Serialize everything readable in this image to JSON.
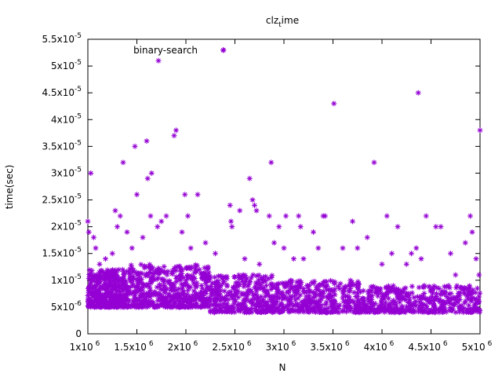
{
  "chart_data": {
    "type": "scatter",
    "title": "clz",
    "title_sub": "t",
    "title_end": "ime",
    "xlabel": "N",
    "ylabel": "time(sec)",
    "xlim": [
      1000000,
      5000000
    ],
    "ylim": [
      0,
      5.5e-05
    ],
    "grid": false,
    "legend_position": "top-left",
    "marker": "asterisk",
    "color": "#9400d3",
    "x_ticks": [
      {
        "value": 1000000,
        "mantissa": "1x10",
        "exp": "6"
      },
      {
        "value": 1500000,
        "mantissa": "1.5x10",
        "exp": "6"
      },
      {
        "value": 2000000,
        "mantissa": "2x10",
        "exp": "6"
      },
      {
        "value": 2500000,
        "mantissa": "2.5x10",
        "exp": "6"
      },
      {
        "value": 3000000,
        "mantissa": "3x10",
        "exp": "6"
      },
      {
        "value": 3500000,
        "mantissa": "3.5x10",
        "exp": "6"
      },
      {
        "value": 4000000,
        "mantissa": "4x10",
        "exp": "6"
      },
      {
        "value": 4500000,
        "mantissa": "4.5x10",
        "exp": "6"
      },
      {
        "value": 5000000,
        "mantissa": "5x10",
        "exp": "6"
      }
    ],
    "y_ticks": [
      {
        "value": 0,
        "mantissa": "0",
        "exp": ""
      },
      {
        "value": 5e-06,
        "mantissa": "5x10",
        "exp": "-6"
      },
      {
        "value": 1e-05,
        "mantissa": "1x10",
        "exp": "-5"
      },
      {
        "value": 1.5e-05,
        "mantissa": "1.5x10",
        "exp": "-5"
      },
      {
        "value": 2e-05,
        "mantissa": "2x10",
        "exp": "-5"
      },
      {
        "value": 2.5e-05,
        "mantissa": "2.5x10",
        "exp": "-5"
      },
      {
        "value": 3e-05,
        "mantissa": "3x10",
        "exp": "-5"
      },
      {
        "value": 3.5e-05,
        "mantissa": "3.5x10",
        "exp": "-5"
      },
      {
        "value": 4e-05,
        "mantissa": "4x10",
        "exp": "-5"
      },
      {
        "value": 4.5e-05,
        "mantissa": "4.5x10",
        "exp": "-5"
      },
      {
        "value": 5e-05,
        "mantissa": "5x10",
        "exp": "-5"
      },
      {
        "value": 5.5e-05,
        "mantissa": "5.5x10",
        "exp": "-5"
      }
    ],
    "series": [
      {
        "name": "binary-search",
        "points": [
          [
            1000000,
            2.1e-05
          ],
          [
            1010000,
            1.9e-05
          ],
          [
            1030000,
            3e-05
          ],
          [
            1060000,
            1.8e-05
          ],
          [
            1080000,
            1.6e-05
          ],
          [
            1120000,
            1.3e-05
          ],
          [
            1180000,
            1.4e-05
          ],
          [
            1250000,
            1.5e-05
          ],
          [
            1280000,
            2.3e-05
          ],
          [
            1300000,
            2e-05
          ],
          [
            1330000,
            2.2e-05
          ],
          [
            1360000,
            3.2e-05
          ],
          [
            1400000,
            1.9e-05
          ],
          [
            1450000,
            1.6e-05
          ],
          [
            1480000,
            3.5e-05
          ],
          [
            1500000,
            2.6e-05
          ],
          [
            1560000,
            1.8e-05
          ],
          [
            1600000,
            3.6e-05
          ],
          [
            1610000,
            2.9e-05
          ],
          [
            1650000,
            3e-05
          ],
          [
            1640000,
            2.2e-05
          ],
          [
            1720000,
            5.1e-05
          ],
          [
            1710000,
            2e-05
          ],
          [
            1750000,
            2.1e-05
          ],
          [
            1800000,
            2.2e-05
          ],
          [
            1880000,
            3.7e-05
          ],
          [
            1900000,
            3.8e-05
          ],
          [
            1960000,
            1.9e-05
          ],
          [
            1990000,
            2.6e-05
          ],
          [
            2020000,
            2.2e-05
          ],
          [
            2050000,
            1.6e-05
          ],
          [
            2120000,
            2.6e-05
          ],
          [
            2200000,
            1.7e-05
          ],
          [
            2300000,
            1.5e-05
          ],
          [
            2380000,
            5.3e-05
          ],
          [
            2450000,
            2.4e-05
          ],
          [
            2460000,
            2.1e-05
          ],
          [
            2470000,
            2e-05
          ],
          [
            2550000,
            2.3e-05
          ],
          [
            2600000,
            1.4e-05
          ],
          [
            2650000,
            2.9e-05
          ],
          [
            2680000,
            2.5e-05
          ],
          [
            2700000,
            2.4e-05
          ],
          [
            2720000,
            2.3e-05
          ],
          [
            2750000,
            1.3e-05
          ],
          [
            2850000,
            2.2e-05
          ],
          [
            2870000,
            3.2e-05
          ],
          [
            2900000,
            1.7e-05
          ],
          [
            2950000,
            2e-05
          ],
          [
            3000000,
            1.6e-05
          ],
          [
            3020000,
            2.2e-05
          ],
          [
            3100000,
            1.4e-05
          ],
          [
            3150000,
            2.2e-05
          ],
          [
            3170000,
            2e-05
          ],
          [
            3200000,
            1.4e-05
          ],
          [
            3300000,
            1.9e-05
          ],
          [
            3350000,
            1.6e-05
          ],
          [
            3400000,
            2.2e-05
          ],
          [
            3420000,
            2.2e-05
          ],
          [
            3510000,
            4.3e-05
          ],
          [
            3600000,
            1.6e-05
          ],
          [
            3700000,
            2.1e-05
          ],
          [
            3750000,
            1.6e-05
          ],
          [
            3850000,
            1.8e-05
          ],
          [
            3920000,
            3.2e-05
          ],
          [
            4000000,
            1.3e-05
          ],
          [
            4050000,
            2.2e-05
          ],
          [
            4100000,
            1.5e-05
          ],
          [
            4160000,
            2e-05
          ],
          [
            4250000,
            1.3e-05
          ],
          [
            4300000,
            1.5e-05
          ],
          [
            4350000,
            1.6e-05
          ],
          [
            4370000,
            4.5e-05
          ],
          [
            4400000,
            1.4e-05
          ],
          [
            4450000,
            2.2e-05
          ],
          [
            4550000,
            2e-05
          ],
          [
            4600000,
            2e-05
          ],
          [
            4700000,
            1.5e-05
          ],
          [
            4750000,
            1.1e-05
          ],
          [
            4850000,
            1.7e-05
          ],
          [
            4900000,
            2.2e-05
          ],
          [
            4920000,
            1.9e-05
          ],
          [
            4960000,
            1.4e-05
          ],
          [
            4990000,
            1.1e-05
          ],
          [
            5000000,
            3.8e-05
          ]
        ],
        "bands": [
          {
            "x_from": 1000000,
            "x_to": 1400000,
            "y_min": 5e-06,
            "y_max": 1.2e-05,
            "count": 420
          },
          {
            "x_from": 1400000,
            "x_to": 2250000,
            "y_min": 5e-06,
            "y_max": 1.3e-05,
            "count": 520
          },
          {
            "x_from": 2250000,
            "x_to": 2900000,
            "y_min": 4e-06,
            "y_max": 1.1e-05,
            "count": 320
          },
          {
            "x_from": 2900000,
            "x_to": 3800000,
            "y_min": 4e-06,
            "y_max": 1e-05,
            "count": 360
          },
          {
            "x_from": 3800000,
            "x_to": 5000000,
            "y_min": 4e-06,
            "y_max": 9e-06,
            "count": 440
          }
        ]
      }
    ]
  }
}
